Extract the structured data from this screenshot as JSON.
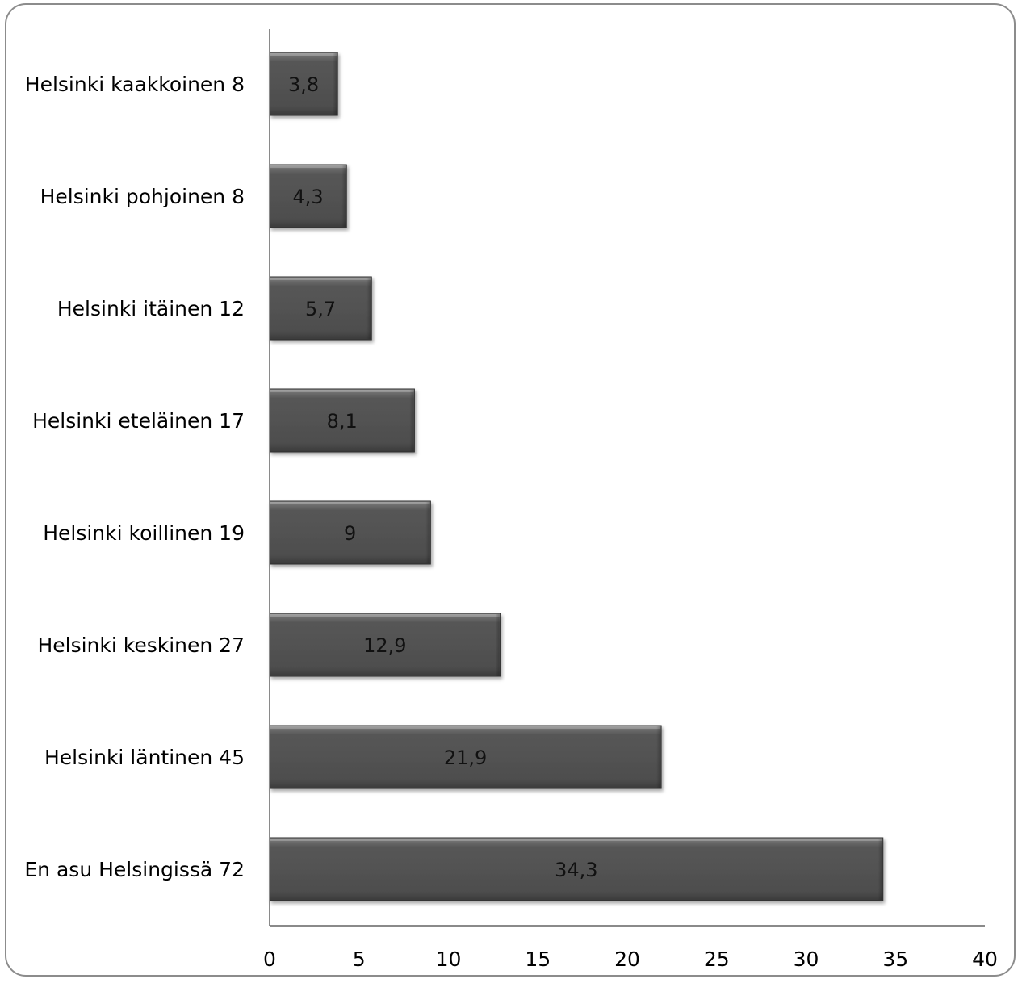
{
  "chart_data": {
    "type": "bar",
    "orientation": "horizontal",
    "categories": [
      "Helsinki kaakkoinen 8",
      "Helsinki pohjoinen 8",
      "Helsinki itäinen 12",
      "Helsinki eteläinen 17",
      "Helsinki koillinen 19",
      "Helsinki keskinen 27",
      "Helsinki läntinen 45",
      "En asu Helsingissä 72"
    ],
    "values": [
      3.8,
      4.3,
      5.7,
      8.1,
      9,
      12.9,
      21.9,
      34.3
    ],
    "data_labels": [
      "3,8",
      "4,3",
      "5,7",
      "8,1",
      "9",
      "12,9",
      "21,9",
      "34,3"
    ],
    "xlim": [
      0,
      40
    ],
    "xticks": [
      "0",
      "5",
      "10",
      "15",
      "20",
      "25",
      "30",
      "35",
      "40"
    ],
    "title": "",
    "xlabel": "",
    "ylabel": "",
    "grid": false,
    "legend": "none",
    "bar_color": "#555555"
  }
}
